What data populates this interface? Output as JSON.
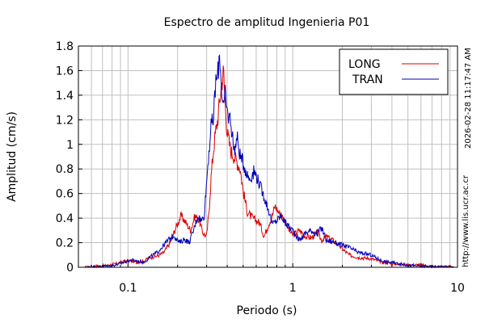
{
  "chart_data": {
    "type": "line",
    "title": "Espectro de amplitud Ingenieria P01",
    "xlabel": "Periodo (s)",
    "ylabel": "Amplitud (cm/s)",
    "x_scale": "log",
    "xlim": [
      0.05,
      10
    ],
    "ylim": [
      0,
      1.8
    ],
    "grid": true,
    "legend_position": "top-right",
    "x_ticks": [
      {
        "value": 0.1,
        "label": "0.1"
      },
      {
        "value": 1,
        "label": "1"
      },
      {
        "value": 10,
        "label": "10"
      }
    ],
    "y_ticks": [
      {
        "value": 0,
        "label": "0"
      },
      {
        "value": 0.2,
        "label": "0.2"
      },
      {
        "value": 0.4,
        "label": "0.4"
      },
      {
        "value": 0.6,
        "label": "0.6"
      },
      {
        "value": 0.8,
        "label": "0.8"
      },
      {
        "value": 1.0,
        "label": "1"
      },
      {
        "value": 1.2,
        "label": "1.2"
      },
      {
        "value": 1.4,
        "label": "1.4"
      },
      {
        "value": 1.6,
        "label": "1.6"
      },
      {
        "value": 1.8,
        "label": "1.8"
      }
    ],
    "series": [
      {
        "name": "LONG",
        "color": "#dd0000",
        "points": [
          [
            0.055,
            0.0
          ],
          [
            0.065,
            0.01
          ],
          [
            0.075,
            0.015
          ],
          [
            0.085,
            0.03
          ],
          [
            0.095,
            0.05
          ],
          [
            0.105,
            0.05
          ],
          [
            0.115,
            0.04
          ],
          [
            0.125,
            0.05
          ],
          [
            0.135,
            0.08
          ],
          [
            0.15,
            0.09
          ],
          [
            0.165,
            0.12
          ],
          [
            0.18,
            0.2
          ],
          [
            0.195,
            0.32
          ],
          [
            0.21,
            0.42
          ],
          [
            0.225,
            0.36
          ],
          [
            0.24,
            0.3
          ],
          [
            0.255,
            0.42
          ],
          [
            0.27,
            0.38
          ],
          [
            0.285,
            0.28
          ],
          [
            0.3,
            0.25
          ],
          [
            0.31,
            0.45
          ],
          [
            0.32,
            0.75
          ],
          [
            0.33,
            0.95
          ],
          [
            0.34,
            1.1
          ],
          [
            0.35,
            1.2
          ],
          [
            0.36,
            1.35
          ],
          [
            0.37,
            1.5
          ],
          [
            0.38,
            1.6
          ],
          [
            0.39,
            1.3
          ],
          [
            0.4,
            1.1
          ],
          [
            0.42,
            0.95
          ],
          [
            0.45,
            0.88
          ],
          [
            0.48,
            0.8
          ],
          [
            0.5,
            0.62
          ],
          [
            0.53,
            0.45
          ],
          [
            0.57,
            0.4
          ],
          [
            0.6,
            0.38
          ],
          [
            0.63,
            0.36
          ],
          [
            0.67,
            0.25
          ],
          [
            0.7,
            0.32
          ],
          [
            0.75,
            0.42
          ],
          [
            0.78,
            0.5
          ],
          [
            0.82,
            0.45
          ],
          [
            0.9,
            0.38
          ],
          [
            0.95,
            0.3
          ],
          [
            1.0,
            0.26
          ],
          [
            1.1,
            0.3
          ],
          [
            1.2,
            0.25
          ],
          [
            1.3,
            0.24
          ],
          [
            1.4,
            0.28
          ],
          [
            1.5,
            0.22
          ],
          [
            1.6,
            0.25
          ],
          [
            1.8,
            0.21
          ],
          [
            2.0,
            0.15
          ],
          [
            2.2,
            0.1
          ],
          [
            2.5,
            0.08
          ],
          [
            3.0,
            0.07
          ],
          [
            3.5,
            0.04
          ],
          [
            4.0,
            0.03
          ],
          [
            5.0,
            0.02
          ],
          [
            6.0,
            0.02
          ],
          [
            7.0,
            0.005
          ],
          [
            8.0,
            0.005
          ],
          [
            9.5,
            0.0
          ]
        ]
      },
      {
        "name": "TRAN",
        "color": "#0000bb",
        "points": [
          [
            0.055,
            0.0
          ],
          [
            0.065,
            0.005
          ],
          [
            0.075,
            0.01
          ],
          [
            0.085,
            0.02
          ],
          [
            0.095,
            0.04
          ],
          [
            0.105,
            0.06
          ],
          [
            0.115,
            0.05
          ],
          [
            0.125,
            0.04
          ],
          [
            0.135,
            0.08
          ],
          [
            0.15,
            0.12
          ],
          [
            0.165,
            0.18
          ],
          [
            0.175,
            0.22
          ],
          [
            0.19,
            0.26
          ],
          [
            0.205,
            0.2
          ],
          [
            0.22,
            0.23
          ],
          [
            0.235,
            0.2
          ],
          [
            0.25,
            0.3
          ],
          [
            0.265,
            0.42
          ],
          [
            0.28,
            0.38
          ],
          [
            0.29,
            0.42
          ],
          [
            0.3,
            0.7
          ],
          [
            0.31,
            0.95
          ],
          [
            0.32,
            1.15
          ],
          [
            0.33,
            1.2
          ],
          [
            0.34,
            1.5
          ],
          [
            0.35,
            1.55
          ],
          [
            0.36,
            1.75
          ],
          [
            0.37,
            1.45
          ],
          [
            0.38,
            1.3
          ],
          [
            0.39,
            1.4
          ],
          [
            0.4,
            1.25
          ],
          [
            0.42,
            1.2
          ],
          [
            0.44,
            0.95
          ],
          [
            0.46,
            1.05
          ],
          [
            0.48,
            0.9
          ],
          [
            0.5,
            0.85
          ],
          [
            0.53,
            0.75
          ],
          [
            0.55,
            0.72
          ],
          [
            0.58,
            0.78
          ],
          [
            0.6,
            0.75
          ],
          [
            0.62,
            0.7
          ],
          [
            0.65,
            0.62
          ],
          [
            0.68,
            0.55
          ],
          [
            0.72,
            0.45
          ],
          [
            0.75,
            0.35
          ],
          [
            0.8,
            0.38
          ],
          [
            0.85,
            0.42
          ],
          [
            0.9,
            0.36
          ],
          [
            1.0,
            0.3
          ],
          [
            1.1,
            0.22
          ],
          [
            1.2,
            0.28
          ],
          [
            1.3,
            0.3
          ],
          [
            1.4,
            0.27
          ],
          [
            1.5,
            0.32
          ],
          [
            1.6,
            0.22
          ],
          [
            1.8,
            0.2
          ],
          [
            2.0,
            0.18
          ],
          [
            2.2,
            0.16
          ],
          [
            2.5,
            0.12
          ],
          [
            3.0,
            0.1
          ],
          [
            3.5,
            0.05
          ],
          [
            4.0,
            0.04
          ],
          [
            5.0,
            0.015
          ],
          [
            6.0,
            0.01
          ],
          [
            7.0,
            0.005
          ],
          [
            8.0,
            0.003
          ],
          [
            9.5,
            0.0
          ]
        ]
      }
    ]
  },
  "side_texts": {
    "timestamp": "2026-02-28 11:17:47 AM",
    "url": "http://www.lis.ucr.ac.cr"
  }
}
